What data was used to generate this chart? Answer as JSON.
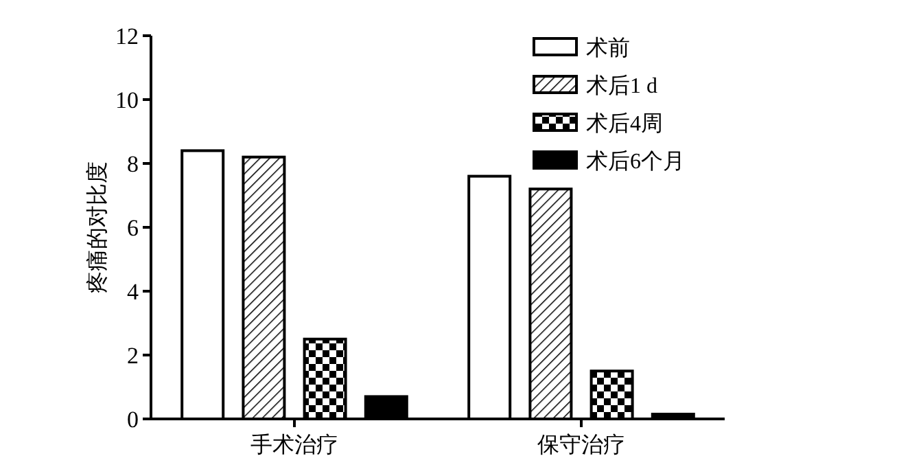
{
  "chart_data": {
    "type": "bar",
    "ylabel": "疼痛的对比度",
    "categories": [
      "手术治疗",
      "保守治疗"
    ],
    "series": [
      {
        "name": "术前",
        "color": "#ffffff",
        "values": [
          8.4,
          7.6
        ]
      },
      {
        "name": "术后1 d",
        "color": "#000000",
        "values": [
          8.2,
          7.2
        ]
      },
      {
        "name": "术后4周",
        "color": "#000000",
        "values": [
          2.5,
          1.5
        ]
      },
      {
        "name": "术后6个月",
        "color": "#000000",
        "values": [
          0.7,
          0.15
        ]
      }
    ],
    "ylim": [
      0,
      12
    ],
    "yticks": [
      0,
      2,
      4,
      6,
      8,
      10,
      12
    ],
    "grid": false,
    "legend": "top right"
  }
}
